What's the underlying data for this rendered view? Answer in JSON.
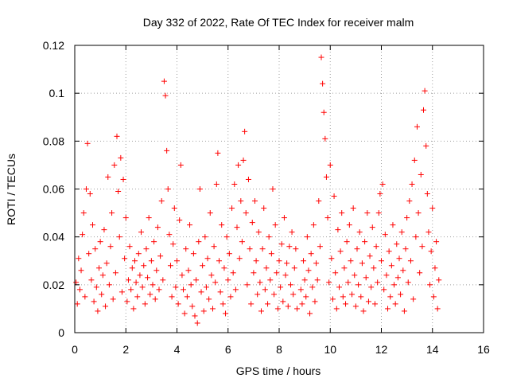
{
  "chart_data": {
    "type": "scatter",
    "title": "Day 332 of 2022, Rate Of TEC Index for receiver malm",
    "xlabel": "GPS time / hours",
    "ylabel": "ROTI / TECUs",
    "xlim": [
      0,
      16
    ],
    "ylim": [
      0,
      0.12
    ],
    "xticks": [
      0,
      2,
      4,
      6,
      8,
      10,
      12,
      14,
      16
    ],
    "xtick_labels": [
      "0",
      "2",
      "4",
      "6",
      "8",
      "10",
      "12",
      "14",
      "16"
    ],
    "yticks": [
      0,
      0.02,
      0.04,
      0.06,
      0.08,
      0.1,
      0.12
    ],
    "ytick_labels": [
      "0",
      "0.02",
      "0.04",
      "0.06",
      "0.08",
      "0.1",
      "0.12"
    ],
    "grid": true,
    "marker": "+",
    "color": "#ff0000",
    "series": [
      {
        "name": "ROTI",
        "points": [
          [
            0.05,
            0.021
          ],
          [
            0.1,
            0.012
          ],
          [
            0.15,
            0.031
          ],
          [
            0.2,
            0.018
          ],
          [
            0.25,
            0.026
          ],
          [
            0.3,
            0.041
          ],
          [
            0.35,
            0.05
          ],
          [
            0.4,
            0.015
          ],
          [
            0.45,
            0.06
          ],
          [
            0.5,
            0.079
          ],
          [
            0.55,
            0.033
          ],
          [
            0.6,
            0.058
          ],
          [
            0.65,
            0.022
          ],
          [
            0.7,
            0.045
          ],
          [
            0.75,
            0.013
          ],
          [
            0.8,
            0.035
          ],
          [
            0.85,
            0.019
          ],
          [
            0.9,
            0.009
          ],
          [
            0.95,
            0.027
          ],
          [
            1.0,
            0.038
          ],
          [
            1.05,
            0.016
          ],
          [
            1.1,
            0.024
          ],
          [
            1.15,
            0.043
          ],
          [
            1.2,
            0.011
          ],
          [
            1.25,
            0.029
          ],
          [
            1.3,
            0.065
          ],
          [
            1.35,
            0.02
          ],
          [
            1.4,
            0.036
          ],
          [
            1.45,
            0.05
          ],
          [
            1.5,
            0.014
          ],
          [
            1.55,
            0.07
          ],
          [
            1.6,
            0.025
          ],
          [
            1.65,
            0.082
          ],
          [
            1.7,
            0.059
          ],
          [
            1.75,
            0.04
          ],
          [
            1.8,
            0.073
          ],
          [
            1.85,
            0.017
          ],
          [
            1.9,
            0.064
          ],
          [
            1.95,
            0.031
          ],
          [
            2.0,
            0.048
          ],
          [
            2.05,
            0.013
          ],
          [
            2.1,
            0.022
          ],
          [
            2.15,
            0.036
          ],
          [
            2.2,
            0.018
          ],
          [
            2.25,
            0.027
          ],
          [
            2.3,
            0.01
          ],
          [
            2.35,
            0.03
          ],
          [
            2.4,
            0.021
          ],
          [
            2.45,
            0.015
          ],
          [
            2.5,
            0.033
          ],
          [
            2.55,
            0.024
          ],
          [
            2.6,
            0.042
          ],
          [
            2.65,
            0.019
          ],
          [
            2.7,
            0.028
          ],
          [
            2.75,
            0.012
          ],
          [
            2.8,
            0.035
          ],
          [
            2.85,
            0.023
          ],
          [
            2.9,
            0.048
          ],
          [
            2.95,
            0.016
          ],
          [
            3.0,
            0.03
          ],
          [
            3.05,
            0.02
          ],
          [
            3.1,
            0.038
          ],
          [
            3.15,
            0.014
          ],
          [
            3.2,
            0.026
          ],
          [
            3.25,
            0.044
          ],
          [
            3.3,
            0.018
          ],
          [
            3.35,
            0.032
          ],
          [
            3.4,
            0.055
          ],
          [
            3.45,
            0.022
          ],
          [
            3.5,
            0.105
          ],
          [
            3.55,
            0.099
          ],
          [
            3.6,
            0.076
          ],
          [
            3.65,
            0.06
          ],
          [
            3.7,
            0.041
          ],
          [
            3.75,
            0.028
          ],
          [
            3.8,
            0.015
          ],
          [
            3.85,
            0.037
          ],
          [
            3.9,
            0.052
          ],
          [
            3.95,
            0.019
          ],
          [
            4.0,
            0.03
          ],
          [
            4.05,
            0.012
          ],
          [
            4.1,
            0.047
          ],
          [
            4.15,
            0.07
          ],
          [
            4.2,
            0.024
          ],
          [
            4.25,
            0.018
          ],
          [
            4.3,
            0.008
          ],
          [
            4.35,
            0.035
          ],
          [
            4.4,
            0.015
          ],
          [
            4.45,
            0.026
          ],
          [
            4.5,
            0.045
          ],
          [
            4.55,
            0.02
          ],
          [
            4.6,
            0.011
          ],
          [
            4.65,
            0.033
          ],
          [
            4.7,
            0.007
          ],
          [
            4.75,
            0.022
          ],
          [
            4.8,
            0.004
          ],
          [
            4.85,
            0.038
          ],
          [
            4.9,
            0.06
          ],
          [
            4.95,
            0.017
          ],
          [
            5.0,
            0.028
          ],
          [
            5.05,
            0.009
          ],
          [
            5.1,
            0.04
          ],
          [
            5.15,
            0.019
          ],
          [
            5.2,
            0.031
          ],
          [
            5.25,
            0.014
          ],
          [
            5.3,
            0.05
          ],
          [
            5.35,
            0.024
          ],
          [
            5.4,
            0.01
          ],
          [
            5.45,
            0.036
          ],
          [
            5.5,
            0.021
          ],
          [
            5.55,
            0.062
          ],
          [
            5.6,
            0.075
          ],
          [
            5.65,
            0.03
          ],
          [
            5.7,
            0.017
          ],
          [
            5.75,
            0.045
          ],
          [
            5.8,
            0.012
          ],
          [
            5.85,
            0.027
          ],
          [
            5.9,
            0.008
          ],
          [
            5.95,
            0.04
          ],
          [
            6.0,
            0.022
          ],
          [
            6.05,
            0.033
          ],
          [
            6.1,
            0.015
          ],
          [
            6.15,
            0.052
          ],
          [
            6.2,
            0.025
          ],
          [
            6.25,
            0.062
          ],
          [
            6.3,
            0.018
          ],
          [
            6.35,
            0.044
          ],
          [
            6.4,
            0.07
          ],
          [
            6.45,
            0.031
          ],
          [
            6.5,
            0.055
          ],
          [
            6.55,
            0.038
          ],
          [
            6.6,
            0.072
          ],
          [
            6.65,
            0.084
          ],
          [
            6.7,
            0.05
          ],
          [
            6.75,
            0.02
          ],
          [
            6.8,
            0.064
          ],
          [
            6.85,
            0.035
          ],
          [
            6.9,
            0.012
          ],
          [
            6.95,
            0.046
          ],
          [
            7.0,
            0.025
          ],
          [
            7.05,
            0.055
          ],
          [
            7.1,
            0.03
          ],
          [
            7.15,
            0.016
          ],
          [
            7.2,
            0.042
          ],
          [
            7.25,
            0.021
          ],
          [
            7.3,
            0.009
          ],
          [
            7.35,
            0.035
          ],
          [
            7.4,
            0.052
          ],
          [
            7.45,
            0.018
          ],
          [
            7.5,
            0.027
          ],
          [
            7.55,
            0.012
          ],
          [
            7.6,
            0.04
          ],
          [
            7.65,
            0.022
          ],
          [
            7.7,
            0.033
          ],
          [
            7.75,
            0.06
          ],
          [
            7.8,
            0.016
          ],
          [
            7.85,
            0.045
          ],
          [
            7.9,
            0.025
          ],
          [
            7.95,
            0.01
          ],
          [
            8.0,
            0.03
          ],
          [
            8.05,
            0.019
          ],
          [
            8.1,
            0.037
          ],
          [
            8.15,
            0.013
          ],
          [
            8.2,
            0.048
          ],
          [
            8.25,
            0.024
          ],
          [
            8.3,
            0.029
          ],
          [
            8.35,
            0.011
          ],
          [
            8.4,
            0.036
          ],
          [
            8.45,
            0.02
          ],
          [
            8.5,
            0.042
          ],
          [
            8.55,
            0.016
          ],
          [
            8.6,
            0.027
          ],
          [
            8.65,
            0.035
          ],
          [
            8.7,
            0.01
          ],
          [
            8.85,
            0.018
          ],
          [
            8.9,
            0.012
          ],
          [
            8.95,
            0.03
          ],
          [
            9.0,
            0.022
          ],
          [
            9.05,
            0.015
          ],
          [
            9.1,
            0.04
          ],
          [
            9.15,
            0.026
          ],
          [
            9.2,
            0.008
          ],
          [
            9.25,
            0.033
          ],
          [
            9.3,
            0.019
          ],
          [
            9.35,
            0.045
          ],
          [
            9.4,
            0.013
          ],
          [
            9.45,
            0.029
          ],
          [
            9.5,
            0.022
          ],
          [
            9.55,
            0.055
          ],
          [
            9.6,
            0.036
          ],
          [
            9.65,
            0.115
          ],
          [
            9.7,
            0.104
          ],
          [
            9.75,
            0.092
          ],
          [
            9.8,
            0.081
          ],
          [
            9.85,
            0.065
          ],
          [
            9.9,
            0.048
          ],
          [
            9.95,
            0.021
          ],
          [
            10.0,
            0.07
          ],
          [
            10.05,
            0.031
          ],
          [
            10.1,
            0.014
          ],
          [
            10.15,
            0.057
          ],
          [
            10.2,
            0.025
          ],
          [
            10.25,
            0.01
          ],
          [
            10.3,
            0.043
          ],
          [
            10.35,
            0.019
          ],
          [
            10.4,
            0.034
          ],
          [
            10.45,
            0.05
          ],
          [
            10.5,
            0.015
          ],
          [
            10.55,
            0.027
          ],
          [
            10.6,
            0.012
          ],
          [
            10.65,
            0.038
          ],
          [
            10.7,
            0.021
          ],
          [
            10.75,
            0.045
          ],
          [
            10.8,
            0.03
          ],
          [
            10.85,
            0.016
          ],
          [
            10.9,
            0.052
          ],
          [
            10.95,
            0.024
          ],
          [
            11.0,
            0.011
          ],
          [
            11.05,
            0.035
          ],
          [
            11.1,
            0.02
          ],
          [
            11.15,
            0.042
          ],
          [
            11.2,
            0.015
          ],
          [
            11.25,
            0.029
          ],
          [
            11.3,
            0.009
          ],
          [
            11.35,
            0.038
          ],
          [
            11.4,
            0.023
          ],
          [
            11.45,
            0.05
          ],
          [
            11.5,
            0.013
          ],
          [
            11.55,
            0.032
          ],
          [
            11.6,
            0.019
          ],
          [
            11.65,
            0.044
          ],
          [
            11.7,
            0.027
          ],
          [
            11.75,
            0.012
          ],
          [
            11.8,
            0.036
          ],
          [
            11.85,
            0.021
          ],
          [
            11.9,
            0.05
          ],
          [
            11.95,
            0.058
          ],
          [
            12.0,
            0.03
          ],
          [
            12.05,
            0.062
          ],
          [
            12.1,
            0.018
          ],
          [
            12.15,
            0.041
          ],
          [
            12.2,
            0.024
          ],
          [
            12.25,
            0.01
          ],
          [
            12.3,
            0.034
          ],
          [
            12.35,
            0.015
          ],
          [
            12.4,
            0.028
          ],
          [
            12.45,
            0.045
          ],
          [
            12.5,
            0.02
          ],
          [
            12.55,
            0.012
          ],
          [
            12.6,
            0.037
          ],
          [
            12.65,
            0.023
          ],
          [
            12.7,
            0.031
          ],
          [
            12.75,
            0.016
          ],
          [
            12.8,
            0.042
          ],
          [
            12.85,
            0.026
          ],
          [
            12.9,
            0.009
          ],
          [
            12.95,
            0.035
          ],
          [
            13.0,
            0.048
          ],
          [
            13.05,
            0.021
          ],
          [
            13.1,
            0.055
          ],
          [
            13.15,
            0.03
          ],
          [
            13.2,
            0.062
          ],
          [
            13.25,
            0.014
          ],
          [
            13.3,
            0.072
          ],
          [
            13.35,
            0.04
          ],
          [
            13.4,
            0.086
          ],
          [
            13.45,
            0.05
          ],
          [
            13.5,
            0.025
          ],
          [
            13.55,
            0.066
          ],
          [
            13.6,
            0.036
          ],
          [
            13.65,
            0.093
          ],
          [
            13.7,
            0.101
          ],
          [
            13.75,
            0.078
          ],
          [
            13.8,
            0.058
          ],
          [
            13.85,
            0.042
          ],
          [
            13.9,
            0.02
          ],
          [
            13.95,
            0.034
          ],
          [
            14.0,
            0.052
          ],
          [
            14.05,
            0.015
          ],
          [
            14.1,
            0.027
          ],
          [
            14.15,
            0.038
          ],
          [
            14.2,
            0.01
          ],
          [
            14.25,
            0.022
          ]
        ]
      }
    ]
  }
}
